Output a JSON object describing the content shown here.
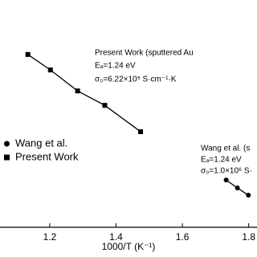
{
  "chart_data": {
    "type": "line",
    "x_label": "1000/T (K⁻¹)",
    "xlim": [
      1.05,
      1.825
    ],
    "xticks": [
      1.2,
      1.4,
      1.6,
      1.8
    ],
    "ylim": [
      -6.2,
      0.1
    ],
    "legend": "left",
    "series": [
      {
        "name": "Wang et al.",
        "color": "#000000",
        "marker": "circle",
        "x": [
          1.732,
          1.766,
          1.799
        ],
        "values": [
          -4.89,
          -5.11,
          -5.31
        ]
      },
      {
        "name": "Present Work",
        "color": "#000000",
        "marker": "square",
        "x": [
          1.134,
          1.202,
          1.284,
          1.366,
          1.474
        ],
        "values": [
          -1.41,
          -1.84,
          -2.42,
          -2.82,
          -3.55
        ]
      }
    ],
    "annotations": [
      "Present Work (sputtered Au",
      "Eₐ=1.24 eV",
      "σ₀=6.22×10⁵ S·cm⁻¹·K",
      "Wang et al. (s",
      "Eₐ=1.24 eV",
      "σ₀=1.0×10⁶ S·"
    ]
  }
}
